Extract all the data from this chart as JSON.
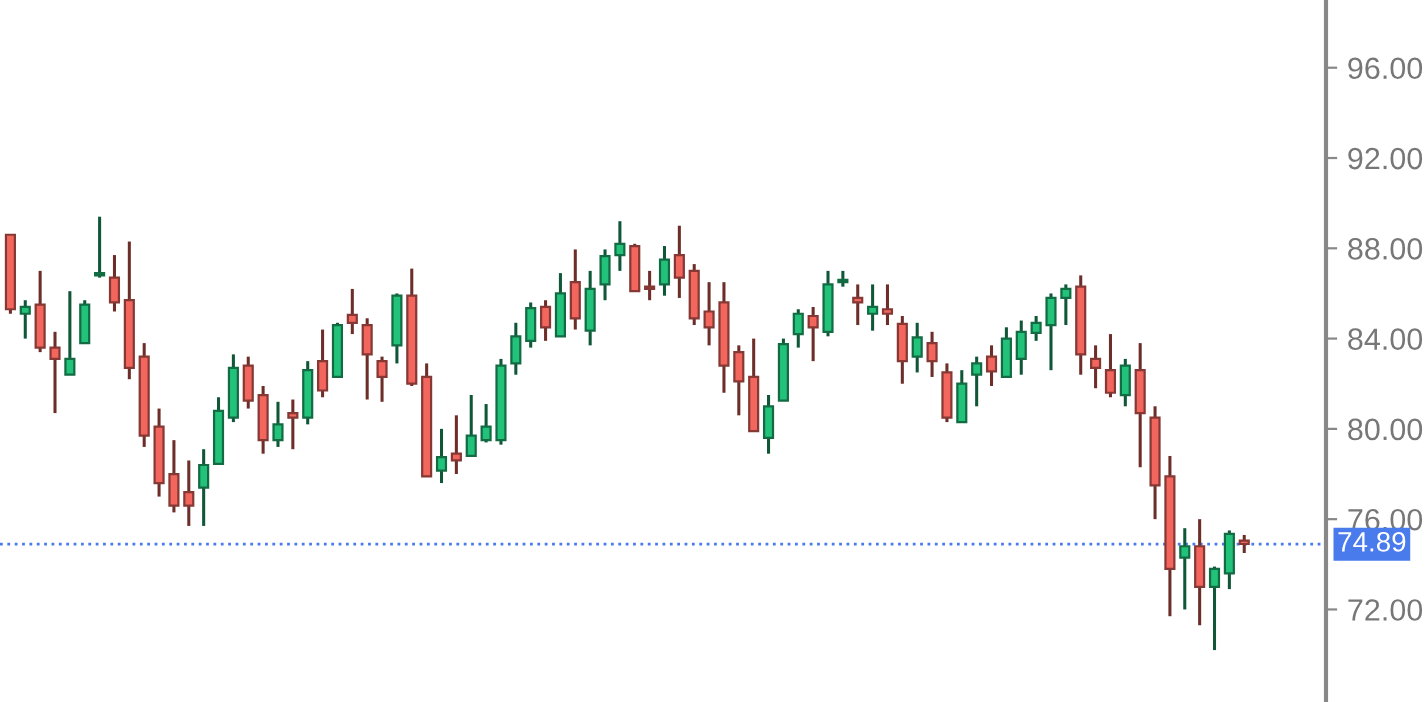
{
  "chart_data": {
    "type": "candlestick",
    "categories": [
      null,
      null,
      null,
      null,
      null,
      null,
      null,
      null,
      null,
      null,
      null,
      null,
      null,
      null,
      null,
      null,
      null,
      null,
      null,
      null,
      null,
      null,
      null,
      null,
      null,
      null,
      null,
      null,
      null,
      null,
      null,
      null,
      null,
      null,
      null,
      null,
      null,
      null,
      null,
      null,
      null,
      null,
      null,
      null,
      null,
      null,
      null,
      null,
      null,
      null,
      null,
      null,
      null,
      null,
      null,
      null,
      null,
      null,
      null,
      null,
      null,
      null,
      null,
      null,
      null,
      null,
      null,
      null,
      null,
      null,
      null,
      null,
      null,
      null,
      null,
      null,
      null,
      null,
      null,
      null,
      null,
      null,
      null,
      null
    ],
    "ohlc": [
      [
        88.6,
        88.6,
        85.1,
        85.3
      ],
      [
        85.1,
        85.7,
        84.0,
        85.4
      ],
      [
        85.5,
        87.0,
        83.4,
        83.6
      ],
      [
        83.6,
        84.3,
        80.7,
        83.1
      ],
      [
        82.4,
        86.1,
        82.4,
        83.1
      ],
      [
        83.8,
        85.7,
        83.8,
        85.5
      ],
      [
        86.8,
        89.4,
        86.7,
        86.9
      ],
      [
        86.7,
        87.7,
        85.2,
        85.6
      ],
      [
        85.7,
        88.3,
        82.2,
        82.7
      ],
      [
        83.2,
        83.8,
        79.2,
        79.7
      ],
      [
        80.1,
        80.9,
        77.0,
        77.6
      ],
      [
        78.0,
        79.5,
        76.3,
        76.6
      ],
      [
        77.2,
        78.6,
        75.7,
        76.6
      ],
      [
        77.4,
        79.1,
        75.7,
        78.4
      ],
      [
        78.45,
        81.4,
        78.45,
        80.8
      ],
      [
        80.5,
        83.3,
        80.3,
        82.7
      ],
      [
        82.8,
        83.2,
        80.9,
        81.25
      ],
      [
        81.5,
        81.9,
        78.9,
        79.5
      ],
      [
        79.5,
        81.2,
        79.2,
        80.2
      ],
      [
        80.7,
        81.3,
        79.1,
        80.5
      ],
      [
        80.5,
        83.0,
        80.2,
        82.6
      ],
      [
        83.0,
        84.4,
        81.4,
        81.7
      ],
      [
        82.3,
        84.7,
        82.3,
        84.6
      ],
      [
        85.05,
        86.2,
        84.2,
        84.7
      ],
      [
        84.6,
        84.9,
        81.3,
        83.3
      ],
      [
        83.0,
        83.2,
        81.2,
        82.3
      ],
      [
        83.7,
        86.0,
        82.9,
        85.9
      ],
      [
        85.9,
        87.1,
        81.9,
        82.0
      ],
      [
        82.3,
        82.9,
        77.9,
        77.9
      ],
      [
        78.15,
        80.0,
        77.6,
        78.75
      ],
      [
        78.9,
        80.6,
        78.0,
        78.6
      ],
      [
        78.8,
        81.5,
        78.8,
        79.7
      ],
      [
        79.5,
        81.1,
        79.4,
        80.1
      ],
      [
        79.5,
        83.1,
        79.3,
        82.8
      ],
      [
        82.9,
        84.7,
        82.4,
        84.1
      ],
      [
        83.9,
        85.6,
        83.6,
        85.35
      ],
      [
        85.4,
        85.7,
        83.9,
        84.5
      ],
      [
        84.1,
        86.9,
        84.1,
        86.0
      ],
      [
        86.5,
        87.95,
        84.4,
        84.9
      ],
      [
        84.35,
        87.0,
        83.7,
        86.2
      ],
      [
        86.4,
        87.95,
        85.7,
        87.65
      ],
      [
        87.7,
        89.2,
        87.0,
        88.2
      ],
      [
        88.1,
        88.2,
        86.1,
        86.1
      ],
      [
        86.3,
        87.0,
        85.7,
        86.2
      ],
      [
        86.4,
        88.1,
        85.9,
        87.5
      ],
      [
        87.7,
        89.0,
        85.8,
        86.7
      ],
      [
        87.0,
        87.3,
        84.6,
        84.9
      ],
      [
        85.2,
        86.5,
        83.7,
        84.5
      ],
      [
        85.6,
        86.5,
        81.6,
        82.8
      ],
      [
        83.4,
        83.7,
        80.6,
        82.1
      ],
      [
        82.3,
        84.0,
        79.9,
        79.9
      ],
      [
        79.6,
        81.5,
        78.9,
        81.0
      ],
      [
        81.25,
        84.0,
        81.25,
        83.75
      ],
      [
        84.2,
        85.3,
        83.6,
        85.1
      ],
      [
        85.0,
        85.4,
        83.0,
        84.5
      ],
      [
        84.3,
        87.0,
        84.1,
        86.4
      ],
      [
        86.5,
        87.0,
        86.3,
        86.6
      ],
      [
        85.8,
        86.4,
        84.6,
        85.6
      ],
      [
        85.1,
        86.4,
        84.35,
        85.4
      ],
      [
        85.3,
        86.4,
        84.6,
        85.1
      ],
      [
        84.65,
        85.0,
        82.0,
        83.0
      ],
      [
        83.2,
        84.7,
        82.5,
        84.05
      ],
      [
        83.8,
        84.3,
        82.3,
        83.0
      ],
      [
        82.5,
        82.9,
        80.3,
        80.5
      ],
      [
        80.3,
        82.6,
        80.3,
        82.0
      ],
      [
        82.4,
        83.2,
        81.0,
        82.9
      ],
      [
        83.2,
        83.7,
        81.9,
        82.55
      ],
      [
        82.3,
        84.5,
        82.3,
        84.0
      ],
      [
        83.1,
        84.8,
        82.4,
        84.3
      ],
      [
        84.25,
        85.0,
        83.9,
        84.7
      ],
      [
        84.6,
        86.0,
        82.6,
        85.8
      ],
      [
        85.8,
        86.4,
        84.6,
        86.2
      ],
      [
        86.3,
        86.8,
        82.4,
        83.3
      ],
      [
        83.1,
        83.7,
        81.8,
        82.7
      ],
      [
        82.6,
        84.2,
        81.4,
        81.6
      ],
      [
        81.5,
        83.1,
        81.0,
        82.8
      ],
      [
        82.6,
        83.8,
        78.3,
        80.7
      ],
      [
        80.5,
        81.0,
        76.0,
        77.5
      ],
      [
        77.9,
        78.8,
        71.7,
        73.8
      ],
      [
        74.3,
        75.6,
        72.0,
        74.8
      ],
      [
        74.8,
        76.0,
        71.3,
        73.0
      ],
      [
        73.0,
        73.9,
        70.2,
        73.8
      ],
      [
        73.6,
        75.5,
        72.9,
        75.35
      ],
      [
        75.05,
        75.3,
        74.5,
        74.9
      ]
    ],
    "colors": [
      "#f2665e",
      "#22c27a",
      "#f2665e",
      "#f2665e",
      "#22c27a",
      "#22c27a",
      "#22c27a",
      "#f2665e",
      "#f2665e",
      "#f2665e",
      "#f2665e",
      "#f2665e",
      "#f2665e",
      "#22c27a",
      "#22c27a",
      "#22c27a",
      "#f2665e",
      "#f2665e",
      "#22c27a",
      "#f2665e",
      "#22c27a",
      "#f2665e",
      "#22c27a",
      "#f2665e",
      "#f2665e",
      "#f2665e",
      "#22c27a",
      "#f2665e",
      "#f2665e",
      "#22c27a",
      "#f2665e",
      "#22c27a",
      "#22c27a",
      "#22c27a",
      "#22c27a",
      "#22c27a",
      "#f2665e",
      "#22c27a",
      "#f2665e",
      "#22c27a",
      "#22c27a",
      "#22c27a",
      "#f2665e",
      "#f2665e",
      "#22c27a",
      "#f2665e",
      "#f2665e",
      "#f2665e",
      "#f2665e",
      "#f2665e",
      "#f2665e",
      "#22c27a",
      "#22c27a",
      "#22c27a",
      "#f2665e",
      "#22c27a",
      "#22c27a",
      "#f2665e",
      "#22c27a",
      "#f2665e",
      "#f2665e",
      "#22c27a",
      "#f2665e",
      "#f2665e",
      "#22c27a",
      "#22c27a",
      "#f2665e",
      "#22c27a",
      "#22c27a",
      "#22c27a",
      "#22c27a",
      "#22c27a",
      "#f2665e",
      "#f2665e",
      "#f2665e",
      "#22c27a",
      "#f2665e",
      "#f2665e",
      "#f2665e",
      "#22c27a",
      "#f2665e",
      "#22c27a",
      "#22c27a",
      "#f2665e"
    ],
    "ylim": [
      67.9,
      99.0
    ],
    "yticks": [
      {
        "value": 72,
        "label": "72.00"
      },
      {
        "value": 76,
        "label": "76.00"
      },
      {
        "value": 80,
        "label": "80.00"
      },
      {
        "value": 84,
        "label": "84.00"
      },
      {
        "value": 88,
        "label": "88.00"
      },
      {
        "value": 92,
        "label": "92.00"
      },
      {
        "value": 96,
        "label": "96.00"
      }
    ],
    "ref_lines": [
      {
        "axis": "y",
        "value": 74.89,
        "label": "74.89",
        "color": "#4a7bec",
        "line_style": "dotted"
      }
    ],
    "tick_labels": "y",
    "grid": false
  }
}
